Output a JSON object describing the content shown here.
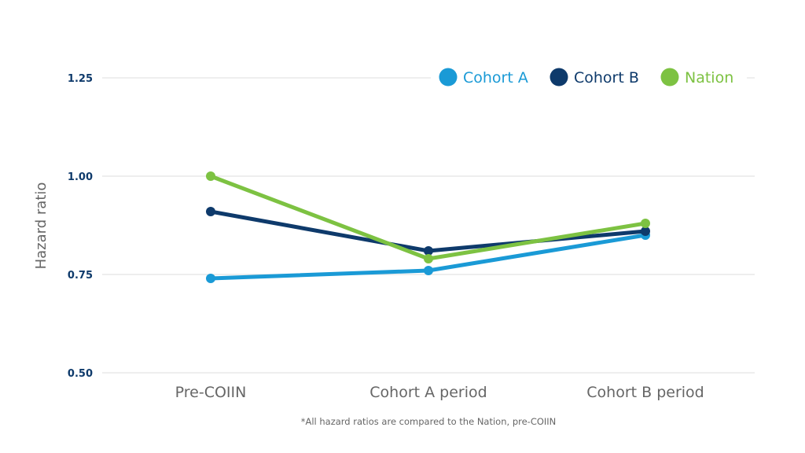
{
  "chart_data": {
    "type": "line",
    "title": "",
    "xlabel": "",
    "ylabel": "Hazard ratio",
    "ylim": [
      0.5,
      1.25
    ],
    "yticks": [
      "1.25",
      "1.00",
      "0.75",
      "0.50"
    ],
    "categories": [
      "Pre-COIIN",
      "Cohort A period",
      "Cohort B period"
    ],
    "series": [
      {
        "name": "Cohort A",
        "color": "#1a9ad6",
        "values": [
          0.74,
          0.76,
          0.85
        ]
      },
      {
        "name": "Cohort B",
        "color": "#0e3a6b",
        "values": [
          0.91,
          0.81,
          0.86
        ]
      },
      {
        "name": "Nation",
        "color": "#7dc242",
        "values": [
          1.0,
          0.79,
          0.88
        ]
      }
    ],
    "grid": true,
    "legend_position": "top-right",
    "annotation": "*All hazard ratios are compared to the Nation, pre-COIIN"
  },
  "colors": {
    "grid": "#e3e3e3",
    "tick_label": "#0e3a6b",
    "axis_text": "#666666"
  }
}
